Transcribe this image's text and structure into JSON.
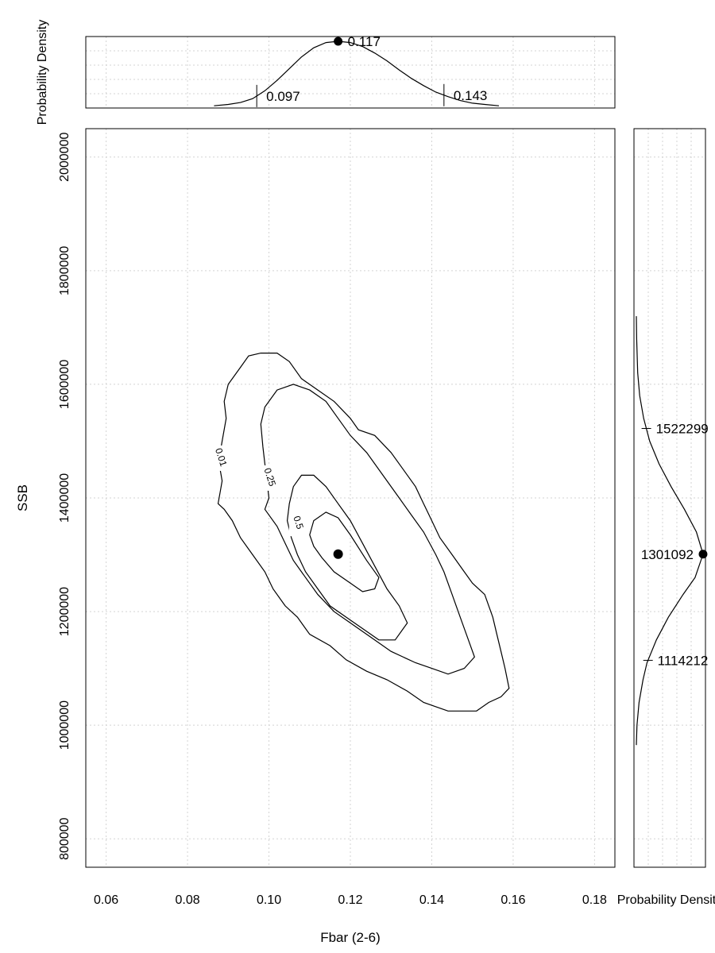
{
  "chart_data": [
    {
      "id": "main",
      "type": "contour",
      "xlabel": "Fbar (2-6)",
      "ylabel": "SSB",
      "xlim": [
        0.055,
        0.185
      ],
      "ylim": [
        750000,
        2050000
      ],
      "xticks": [
        0.06,
        0.08,
        0.1,
        0.12,
        0.14,
        0.16,
        0.18
      ],
      "xtick_labels": [
        "0.06",
        "0.08",
        "0.10",
        "0.12",
        "0.14",
        "0.16",
        "0.18"
      ],
      "yticks": [
        800000,
        1000000,
        1200000,
        1400000,
        1600000,
        1800000,
        2000000
      ],
      "ytick_labels": [
        "800000",
        "1000000",
        "1200000",
        "1400000",
        "1600000",
        "1800000",
        "2000000"
      ],
      "grid": true,
      "point_estimate": {
        "x": 0.117,
        "y": 1301092
      },
      "contours": [
        {
          "level": "0.01",
          "label_at": [
            0.0875,
            1470000
          ],
          "points": [
            [
              0.0875,
              1390000
            ],
            [
              0.088,
              1410000
            ],
            [
              0.0885,
              1430000
            ],
            [
              0.088,
              1450000
            ],
            [
              0.0878,
              1470000
            ],
            [
              0.0885,
              1500000
            ],
            [
              0.0895,
              1540000
            ],
            [
              0.089,
              1570000
            ],
            [
              0.09,
              1600000
            ],
            [
              0.093,
              1630000
            ],
            [
              0.095,
              1650000
            ],
            [
              0.098,
              1655000
            ],
            [
              0.102,
              1655000
            ],
            [
              0.105,
              1640000
            ],
            [
              0.108,
              1610000
            ],
            [
              0.112,
              1590000
            ],
            [
              0.116,
              1570000
            ],
            [
              0.12,
              1540000
            ],
            [
              0.122,
              1520000
            ],
            [
              0.126,
              1510000
            ],
            [
              0.13,
              1480000
            ],
            [
              0.133,
              1450000
            ],
            [
              0.136,
              1420000
            ],
            [
              0.138,
              1390000
            ],
            [
              0.14,
              1360000
            ],
            [
              0.142,
              1330000
            ],
            [
              0.145,
              1300000
            ],
            [
              0.148,
              1270000
            ],
            [
              0.15,
              1250000
            ],
            [
              0.153,
              1230000
            ],
            [
              0.155,
              1190000
            ],
            [
              0.156,
              1160000
            ],
            [
              0.157,
              1130000
            ],
            [
              0.158,
              1100000
            ],
            [
              0.159,
              1065000
            ],
            [
              0.157,
              1050000
            ],
            [
              0.154,
              1040000
            ],
            [
              0.151,
              1025000
            ],
            [
              0.148,
              1025000
            ],
            [
              0.144,
              1025000
            ],
            [
              0.142,
              1030000
            ],
            [
              0.138,
              1040000
            ],
            [
              0.134,
              1060000
            ],
            [
              0.129,
              1080000
            ],
            [
              0.124,
              1095000
            ],
            [
              0.119,
              1115000
            ],
            [
              0.115,
              1140000
            ],
            [
              0.11,
              1160000
            ],
            [
              0.107,
              1190000
            ],
            [
              0.104,
              1210000
            ],
            [
              0.101,
              1240000
            ],
            [
              0.099,
              1270000
            ],
            [
              0.096,
              1300000
            ],
            [
              0.093,
              1330000
            ],
            [
              0.091,
              1360000
            ],
            [
              0.089,
              1380000
            ],
            [
              0.0875,
              1390000
            ]
          ]
        },
        {
          "level": "0.25",
          "label_at": [
            0.0995,
            1435000
          ],
          "points": [
            [
              0.099,
              1380000
            ],
            [
              0.1,
              1400000
            ],
            [
              0.0995,
              1430000
            ],
            [
              0.099,
              1460000
            ],
            [
              0.0985,
              1490000
            ],
            [
              0.098,
              1530000
            ],
            [
              0.099,
              1560000
            ],
            [
              0.102,
              1590000
            ],
            [
              0.106,
              1600000
            ],
            [
              0.11,
              1590000
            ],
            [
              0.114,
              1570000
            ],
            [
              0.117,
              1540000
            ],
            [
              0.12,
              1510000
            ],
            [
              0.124,
              1480000
            ],
            [
              0.128,
              1440000
            ],
            [
              0.132,
              1400000
            ],
            [
              0.135,
              1370000
            ],
            [
              0.138,
              1340000
            ],
            [
              0.141,
              1300000
            ],
            [
              0.143,
              1270000
            ],
            [
              0.145,
              1230000
            ],
            [
              0.147,
              1190000
            ],
            [
              0.149,
              1150000
            ],
            [
              0.1505,
              1120000
            ],
            [
              0.148,
              1100000
            ],
            [
              0.144,
              1090000
            ],
            [
              0.14,
              1100000
            ],
            [
              0.136,
              1110000
            ],
            [
              0.13,
              1130000
            ],
            [
              0.125,
              1155000
            ],
            [
              0.12,
              1180000
            ],
            [
              0.116,
              1200000
            ],
            [
              0.112,
              1230000
            ],
            [
              0.109,
              1260000
            ],
            [
              0.106,
              1290000
            ],
            [
              0.104,
              1320000
            ],
            [
              0.102,
              1350000
            ],
            [
              0.099,
              1380000
            ]
          ]
        },
        {
          "level": "0.5",
          "label_at": [
            0.1065,
            1355000
          ],
          "points": [
            [
              0.1045,
              1360000
            ],
            [
              0.105,
              1390000
            ],
            [
              0.106,
              1420000
            ],
            [
              0.108,
              1440000
            ],
            [
              0.111,
              1440000
            ],
            [
              0.114,
              1420000
            ],
            [
              0.117,
              1390000
            ],
            [
              0.12,
              1360000
            ],
            [
              0.123,
              1320000
            ],
            [
              0.126,
              1280000
            ],
            [
              0.129,
              1240000
            ],
            [
              0.132,
              1210000
            ],
            [
              0.134,
              1180000
            ],
            [
              0.131,
              1150000
            ],
            [
              0.127,
              1150000
            ],
            [
              0.123,
              1170000
            ],
            [
              0.119,
              1190000
            ],
            [
              0.115,
              1210000
            ],
            [
              0.112,
              1240000
            ],
            [
              0.109,
              1270000
            ],
            [
              0.107,
              1300000
            ],
            [
              0.1055,
              1330000
            ],
            [
              0.1045,
              1360000
            ]
          ]
        },
        {
          "level": "",
          "label_at": null,
          "points": [
            [
              0.11,
              1335000
            ],
            [
              0.111,
              1360000
            ],
            [
              0.114,
              1375000
            ],
            [
              0.117,
              1365000
            ],
            [
              0.12,
              1335000
            ],
            [
              0.124,
              1290000
            ],
            [
              0.127,
              1260000
            ],
            [
              0.126,
              1240000
            ],
            [
              0.123,
              1235000
            ],
            [
              0.12,
              1250000
            ],
            [
              0.116,
              1270000
            ],
            [
              0.113,
              1295000
            ],
            [
              0.111,
              1315000
            ],
            [
              0.11,
              1335000
            ]
          ]
        }
      ]
    },
    {
      "id": "top-marginal",
      "type": "line",
      "ylabel": "Probability Density",
      "x": [
        0.0865,
        0.09,
        0.093,
        0.096,
        0.099,
        0.102,
        0.105,
        0.108,
        0.111,
        0.114,
        0.117,
        0.12,
        0.123,
        0.126,
        0.129,
        0.132,
        0.135,
        0.138,
        0.141,
        0.144,
        0.147,
        0.15,
        0.153,
        0.1565
      ],
      "y": [
        0.01,
        0.03,
        0.06,
        0.12,
        0.24,
        0.4,
        0.58,
        0.76,
        0.9,
        0.98,
        1.0,
        0.98,
        0.92,
        0.82,
        0.7,
        0.56,
        0.43,
        0.32,
        0.22,
        0.15,
        0.09,
        0.05,
        0.03,
        0.01
      ],
      "xlim": [
        0.055,
        0.185
      ],
      "grid": true,
      "markers": [
        {
          "x": 0.117,
          "label": "0.117",
          "kind": "point"
        },
        {
          "x": 0.097,
          "label": "0.097",
          "kind": "tick"
        },
        {
          "x": 0.143,
          "label": "0.143",
          "kind": "tick"
        }
      ]
    },
    {
      "id": "right-marginal",
      "type": "line",
      "xlabel": "Probability Density",
      "y": [
        965000,
        1000000,
        1040000,
        1080000,
        1110000,
        1150000,
        1190000,
        1230000,
        1260000,
        1301092,
        1340000,
        1380000,
        1420000,
        1460000,
        1500000,
        1540000,
        1580000,
        1620000,
        1680000,
        1720000
      ],
      "x": [
        0.0,
        0.01,
        0.04,
        0.1,
        0.16,
        0.3,
        0.48,
        0.7,
        0.88,
        1.0,
        0.9,
        0.72,
        0.52,
        0.34,
        0.2,
        0.11,
        0.05,
        0.02,
        0.005,
        0.0
      ],
      "ylim": [
        750000,
        2050000
      ],
      "grid": true,
      "markers": [
        {
          "y": 1301092,
          "label": "1301092",
          "kind": "point"
        },
        {
          "y": 1522299,
          "label": "1522299",
          "kind": "tick"
        },
        {
          "y": 1114212,
          "label": "1114212",
          "kind": "tick"
        }
      ]
    }
  ]
}
